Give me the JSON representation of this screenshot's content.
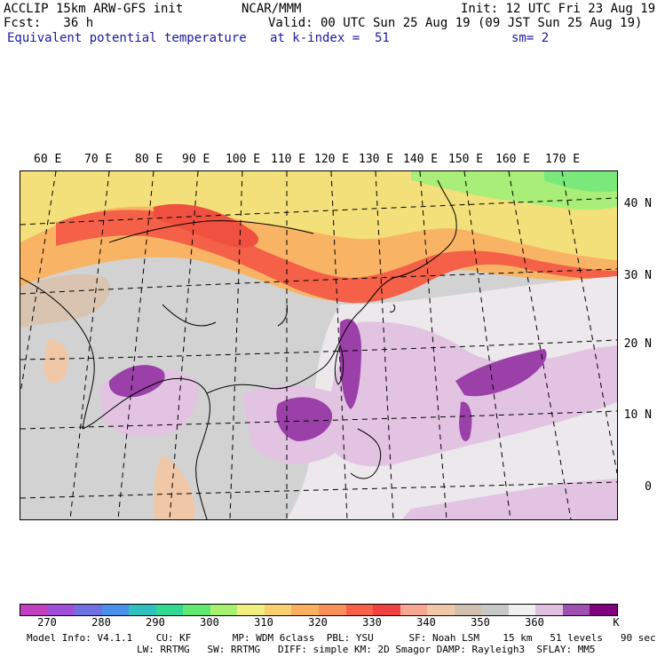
{
  "header": {
    "line1_left": "ACCLIP 15km ARW-GFS init",
    "line1_mid": "NCAR/MMM",
    "line1_right": "Init: 12 UTC Fri 23 Aug 19",
    "line2_left": "Fcst:   36 h",
    "line2_right": "Valid: 00 UTC Sun 25 Aug 19 (09 JST Sun 25 Aug 19)",
    "line3_left": "Equivalent potential temperature",
    "line3_mid": "at k-index =  51",
    "line3_right": "sm= 2"
  },
  "map": {
    "lon_labels": [
      "60 E",
      "70 E",
      "80 E",
      "90 E",
      "100 E",
      "110 E",
      "120 E",
      "130 E",
      "140 E",
      "150 E",
      "160 E",
      "170 E"
    ],
    "lat_labels": [
      "40 N",
      "30 N",
      "20 N",
      "10 N",
      "0"
    ]
  },
  "colorbar": {
    "colors": [
      "#c040c0",
      "#a050d8",
      "#7070e0",
      "#4890e8",
      "#30c0c0",
      "#30d890",
      "#60e870",
      "#a8f070",
      "#f0f080",
      "#f8d070",
      "#f8b060",
      "#f89058",
      "#f86048",
      "#f04040",
      "#f8a890",
      "#f0c8a8",
      "#d0c0b0",
      "#c8c8c8",
      "#f0f0f0",
      "#e0c0e0",
      "#a050b0",
      "#800080"
    ],
    "labels": [
      "270",
      "280",
      "290",
      "300",
      "310",
      "320",
      "330",
      "340",
      "350",
      "360",
      "K"
    ]
  },
  "footer": {
    "line1": "Model Info: V4.1.1    CU: KF       MP: WDM 6class  PBL: YSU      SF: Noah LSM    15 km   51 levels   90 sec",
    "line2": "LW: RRTMG   SW: RRTMG   DIFF: simple KM: 2D Smagor DAMP: Rayleigh3  SFLAY: MM5"
  }
}
